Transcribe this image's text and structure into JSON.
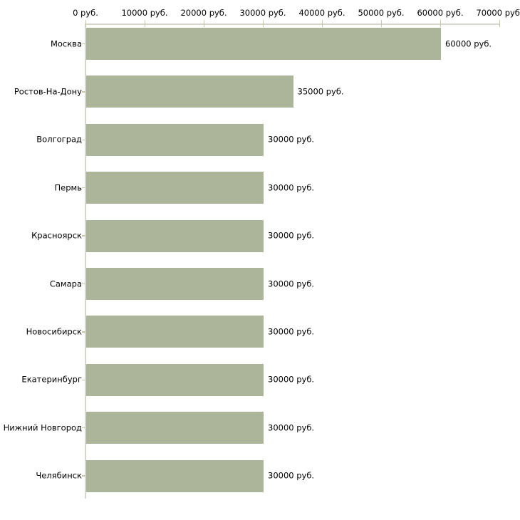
{
  "chart_data": {
    "type": "bar",
    "orientation": "horizontal",
    "categories": [
      "Москва",
      "Ростов-На-Дону",
      "Волгоград",
      "Пермь",
      "Красноярск",
      "Самара",
      "Новосибирск",
      "Екатеринбург",
      "Нижний Новгород",
      "Челябинск"
    ],
    "values": [
      60000,
      35000,
      30000,
      30000,
      30000,
      30000,
      30000,
      30000,
      30000,
      30000
    ],
    "value_labels": [
      "60000 руб.",
      "35000 руб.",
      "30000 руб.",
      "30000 руб.",
      "30000 руб.",
      "30000 руб.",
      "30000 руб.",
      "30000 руб.",
      "30000 руб.",
      "30000 руб."
    ],
    "x_ticks": [
      0,
      10000,
      20000,
      30000,
      40000,
      50000,
      60000,
      70000
    ],
    "x_tick_labels": [
      "0 руб.",
      "10000 руб.",
      "20000 руб.",
      "30000 руб.",
      "40000 руб.",
      "50000 руб.",
      "60000 руб.",
      "70000 руб."
    ],
    "xlim": [
      0,
      70000
    ],
    "unit": "руб.",
    "grid": false,
    "legend": null,
    "colors": {
      "bar": "#acb49a",
      "axis_line": "#d6d6ce",
      "tick_mark": "#c8c9a4",
      "text": "#000000",
      "background": "#ffffff"
    }
  }
}
